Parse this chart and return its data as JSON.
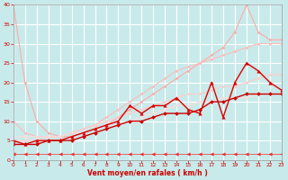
{
  "xlabel": "Vent moyen/en rafales ( km/h )",
  "xlim": [
    0,
    23
  ],
  "ylim": [
    0,
    40
  ],
  "yticks": [
    0,
    5,
    10,
    15,
    20,
    25,
    30,
    35,
    40
  ],
  "xticks": [
    0,
    1,
    2,
    3,
    4,
    5,
    6,
    7,
    8,
    9,
    10,
    11,
    12,
    13,
    14,
    15,
    16,
    17,
    18,
    19,
    20,
    21,
    22,
    23
  ],
  "bg_color": "#c8eaea",
  "grid_color": "#ffffff",
  "lines": [
    {
      "x": [
        0,
        1,
        2,
        3,
        4,
        5,
        6,
        7,
        8,
        9,
        10,
        11,
        12,
        13,
        14,
        15,
        16,
        17,
        18,
        19,
        20,
        21,
        22,
        23
      ],
      "y": [
        40,
        20,
        10,
        7,
        6,
        6,
        7,
        8,
        9,
        11,
        13,
        15,
        17,
        19,
        21,
        23,
        25,
        27,
        29,
        33,
        40,
        33,
        31,
        31
      ],
      "color": "#ffaaaa",
      "marker": "D",
      "markersize": 1.5,
      "linewidth": 0.8,
      "alpha": 1.0
    },
    {
      "x": [
        0,
        1,
        2,
        3,
        4,
        5,
        6,
        7,
        8,
        9,
        10,
        11,
        12,
        13,
        14,
        15,
        16,
        17,
        18,
        19,
        20,
        21,
        22,
        23
      ],
      "y": [
        10,
        7,
        6,
        6,
        6,
        7,
        8,
        9,
        11,
        13,
        15,
        17,
        19,
        21,
        23,
        24,
        25,
        26,
        27,
        28,
        29,
        30,
        30,
        30
      ],
      "color": "#ffbbbb",
      "marker": "D",
      "markersize": 1.5,
      "linewidth": 0.8,
      "alpha": 1.0
    },
    {
      "x": [
        0,
        1,
        2,
        3,
        4,
        5,
        6,
        7,
        8,
        9,
        10,
        11,
        12,
        13,
        14,
        15,
        16,
        17,
        18,
        19,
        20,
        21,
        22,
        23
      ],
      "y": [
        5,
        5,
        5,
        6,
        6,
        7,
        8,
        9,
        10,
        11,
        12,
        13,
        14,
        15,
        16,
        17,
        17,
        18,
        19,
        19,
        20,
        21,
        22,
        22
      ],
      "color": "#ffcccc",
      "marker": "D",
      "markersize": 1.5,
      "linewidth": 0.8,
      "alpha": 1.0
    },
    {
      "x": [
        0,
        1,
        2,
        3,
        4,
        5,
        6,
        7,
        8,
        9,
        10,
        11,
        12,
        13,
        14,
        15,
        16,
        17,
        18,
        19,
        20,
        21,
        22,
        23
      ],
      "y": [
        6,
        6,
        6,
        6,
        6,
        7,
        7,
        8,
        9,
        9,
        10,
        11,
        12,
        13,
        14,
        14,
        15,
        15,
        16,
        16,
        16,
        17,
        17,
        17
      ],
      "color": "#ffdddd",
      "marker": "D",
      "markersize": 1.5,
      "linewidth": 0.8,
      "alpha": 1.0
    },
    {
      "x": [
        0,
        1,
        2,
        3,
        4,
        5,
        6,
        7,
        8,
        9,
        10,
        11,
        12,
        13,
        14,
        15,
        16,
        17,
        18,
        19,
        20,
        21,
        22,
        23
      ],
      "y": [
        5,
        4,
        5,
        5,
        5,
        6,
        7,
        8,
        9,
        10,
        14,
        12,
        14,
        14,
        16,
        13,
        12,
        20,
        11,
        20,
        25,
        23,
        20,
        18
      ],
      "color": "#dd0000",
      "marker": "^",
      "markersize": 2.5,
      "linewidth": 1.0,
      "alpha": 1.0
    },
    {
      "x": [
        0,
        1,
        2,
        3,
        4,
        5,
        6,
        7,
        8,
        9,
        10,
        11,
        12,
        13,
        14,
        15,
        16,
        17,
        18,
        19,
        20,
        21,
        22,
        23
      ],
      "y": [
        4,
        4,
        4,
        5,
        5,
        5,
        6,
        7,
        8,
        9,
        10,
        10,
        11,
        12,
        12,
        12,
        13,
        15,
        15,
        16,
        17,
        17,
        17,
        17
      ],
      "color": "#cc0000",
      "marker": "D",
      "markersize": 2.0,
      "linewidth": 1.0,
      "alpha": 1.0
    },
    {
      "x": [
        0,
        1,
        2,
        3,
        4,
        5,
        6,
        7,
        8,
        9,
        10,
        11,
        12,
        13,
        14,
        15,
        16,
        17,
        18,
        19,
        20,
        21,
        22,
        23
      ],
      "y": [
        1.5,
        1.5,
        1.5,
        1.5,
        1.5,
        1.5,
        1.5,
        1.5,
        1.5,
        1.5,
        1.5,
        1.5,
        1.5,
        1.5,
        1.5,
        1.5,
        1.5,
        1.5,
        1.5,
        1.5,
        1.5,
        1.5,
        1.5,
        1.5
      ],
      "color": "#ee2222",
      "marker": "<",
      "markersize": 2.5,
      "linewidth": 0.5,
      "alpha": 0.9
    }
  ]
}
